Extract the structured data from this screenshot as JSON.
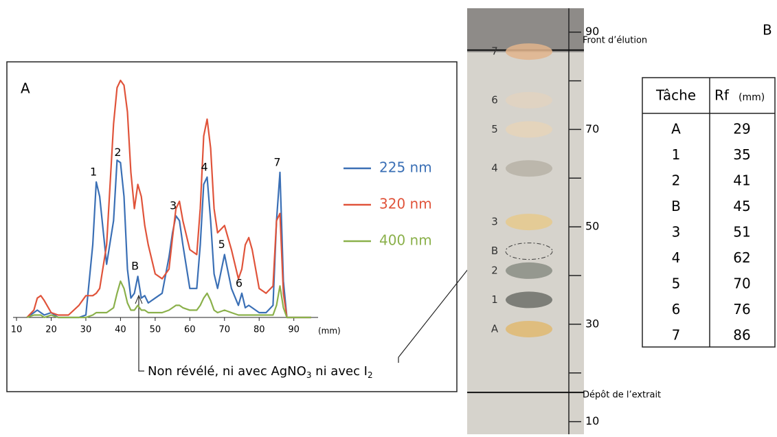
{
  "chart_data": {
    "type": "line",
    "panel_label": "A",
    "x_unit_label": "(mm)",
    "x": [
      13,
      15,
      16,
      17,
      18,
      20,
      22,
      25,
      28,
      30,
      32,
      33,
      34,
      36,
      38,
      39,
      40,
      41,
      42,
      43,
      44,
      45,
      46,
      47,
      48,
      50,
      52,
      54,
      55,
      56,
      57,
      58,
      60,
      62,
      63,
      64,
      65,
      66,
      67,
      68,
      70,
      72,
      74,
      75,
      76,
      77,
      78,
      80,
      82,
      84,
      85,
      86,
      87,
      88,
      90,
      95
    ],
    "series": [
      {
        "name": "225 nm",
        "color": "#3a6fb5",
        "values": [
          0,
          2,
          3,
          2,
          1,
          2,
          0,
          0,
          0,
          1,
          30,
          56,
          50,
          22,
          40,
          65,
          64,
          50,
          20,
          8,
          10,
          17,
          8,
          9,
          6,
          8,
          10,
          25,
          35,
          42,
          40,
          30,
          12,
          12,
          30,
          55,
          58,
          40,
          18,
          12,
          26,
          12,
          5,
          10,
          4,
          5,
          4,
          2,
          2,
          5,
          40,
          60,
          15,
          0,
          0,
          0
        ]
      },
      {
        "name": "320 nm",
        "color": "#e0533a",
        "values": [
          0,
          3,
          8,
          9,
          7,
          2,
          1,
          1,
          5,
          9,
          9,
          10,
          12,
          30,
          80,
          95,
          98,
          96,
          85,
          60,
          45,
          55,
          50,
          38,
          30,
          18,
          16,
          20,
          33,
          45,
          48,
          40,
          28,
          26,
          45,
          75,
          82,
          70,
          45,
          35,
          38,
          28,
          16,
          20,
          30,
          33,
          28,
          12,
          10,
          13,
          40,
          43,
          10,
          0,
          0,
          0
        ]
      },
      {
        "name": "400 nm",
        "color": "#8ab04a",
        "values": [
          0,
          1,
          1,
          1,
          0,
          1,
          0,
          0,
          0,
          0,
          1,
          2,
          2,
          2,
          4,
          10,
          15,
          12,
          6,
          3,
          3,
          5,
          3,
          3,
          2,
          2,
          2,
          3,
          4,
          5,
          5,
          4,
          3,
          3,
          5,
          8,
          10,
          7,
          3,
          2,
          3,
          2,
          1,
          1,
          1,
          1,
          1,
          1,
          1,
          1,
          5,
          13,
          4,
          0,
          0,
          0
        ]
      }
    ],
    "xlim": [
      9,
      97
    ],
    "ylim": [
      0,
      100
    ],
    "xticks": [
      10,
      20,
      30,
      40,
      50,
      60,
      70,
      80,
      90
    ],
    "peak_labels": [
      {
        "label": "1",
        "x": 33
      },
      {
        "label": "2",
        "x": 40
      },
      {
        "label": "B",
        "x": 45
      },
      {
        "label": "3",
        "x": 56
      },
      {
        "label": "4",
        "x": 65
      },
      {
        "label": "5",
        "x": 70
      },
      {
        "label": "6",
        "x": 75
      },
      {
        "label": "7",
        "x": 86
      }
    ],
    "annotation": [
      "Non révélé, ni avec AgNO",
      "3",
      " ni avec I",
      "2"
    ]
  },
  "plate": {
    "panel_label": "B",
    "ylim": [
      7.4,
      94.9
    ],
    "yticks": [
      10,
      30,
      50,
      70,
      90
    ],
    "minor_ticks": [
      20,
      40,
      60,
      80
    ],
    "front_line": 86.3,
    "front_label": "Front d’élution",
    "deposit_line": 16,
    "deposit_label": "Dépôt de l’extrait",
    "spot_labels": [
      "A",
      "1",
      "2",
      "B",
      "3",
      "4",
      "5",
      "6",
      "7"
    ]
  },
  "table": {
    "header": [
      "Tâche",
      "Rf",
      "(mm)"
    ],
    "rows": [
      [
        "A",
        29
      ],
      [
        "1",
        35
      ],
      [
        "2",
        41
      ],
      [
        "B",
        45
      ],
      [
        "3",
        51
      ],
      [
        "4",
        62
      ],
      [
        "5",
        70
      ],
      [
        "6",
        76
      ],
      [
        "7",
        86
      ]
    ]
  }
}
